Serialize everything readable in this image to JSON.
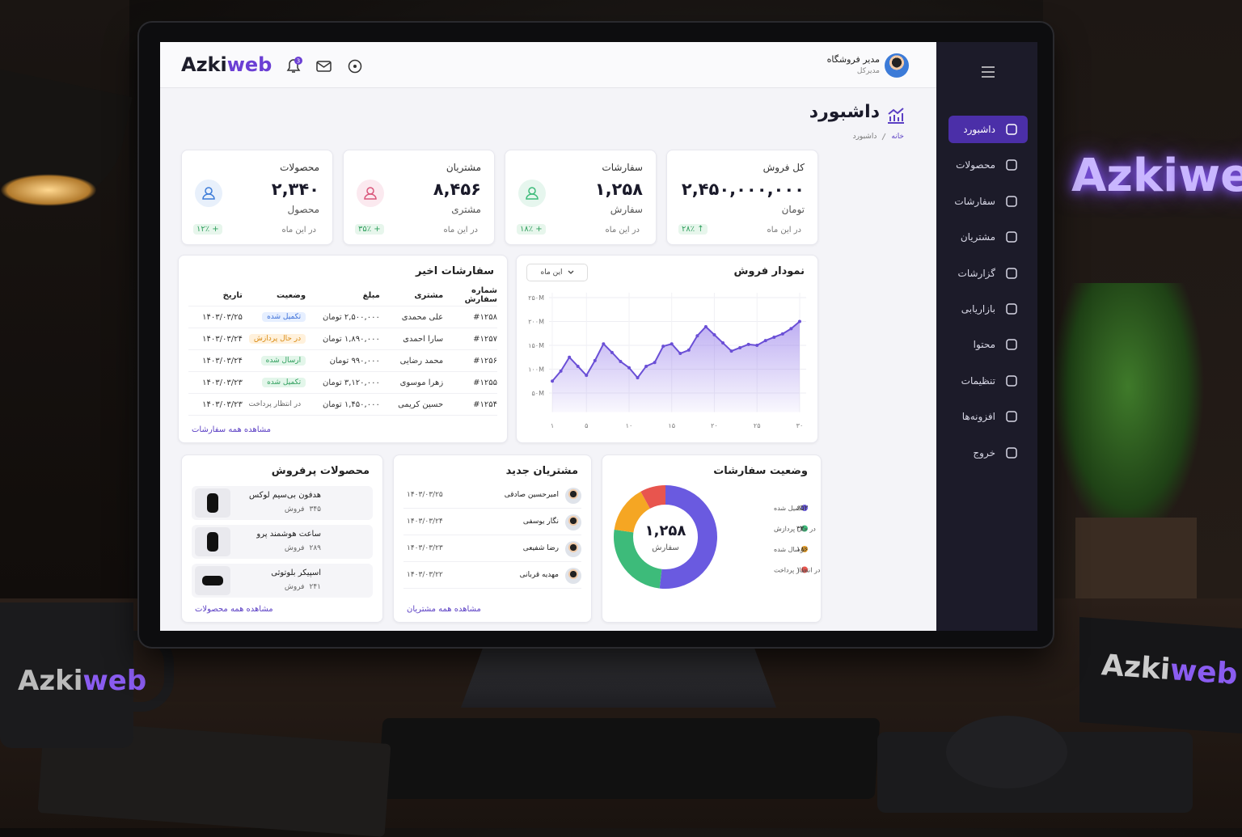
{
  "brand": {
    "parts": [
      "Azki",
      "web"
    ]
  },
  "header": {
    "notification_count": 3,
    "user_name": "مدیر فروشگاه",
    "user_role": "مدیرکل"
  },
  "sidebar": {
    "items": [
      "داشبورد",
      "محصولات",
      "سفارشات",
      "مشتریان",
      "گزارشات",
      "بازاریابی",
      "محتوا",
      "تنظیمات",
      "افزونه‌ها",
      "خروج"
    ],
    "active": 0
  },
  "page": {
    "title": "داشبورد",
    "breadcrumb": [
      "خانه",
      "داشبورد"
    ]
  },
  "kpis": [
    {
      "title": "کل فروش",
      "value": "۲,۴۵۰,۰۰۰,۰۰۰",
      "unit": "تومان",
      "period": "در این ماه",
      "change": "↑ ۲۸٪"
    },
    {
      "title": "سفارشات",
      "value": "۱,۲۵۸",
      "unit": "سفارش",
      "period": "در این ماه",
      "change": "+ ۱۸٪"
    },
    {
      "title": "مشتریان",
      "value": "۸,۴۵۶",
      "unit": "مشتری",
      "period": "در این ماه",
      "change": "+ ۳۵٪"
    },
    {
      "title": "محصولات",
      "value": "۲,۳۴۰",
      "unit": "محصول",
      "period": "در این ماه",
      "change": "+ ۱۲٪"
    }
  ],
  "recent_orders": {
    "title": "سفارشات اخیر",
    "columns": [
      "شماره سفارش",
      "مشتری",
      "مبلغ",
      "وضعیت",
      "تاریخ"
    ],
    "rows": [
      [
        "#۱۲۵۸",
        "علی محمدی",
        "۲,۵۰۰,۰۰۰ تومان",
        "تکمیل شده",
        "۱۴۰۳/۰۳/۲۵"
      ],
      [
        "#۱۲۵۷",
        "سارا احمدی",
        "۱,۸۹۰,۰۰۰ تومان",
        "در حال پردازش",
        "۱۴۰۳/۰۳/۲۴"
      ],
      [
        "#۱۲۵۶",
        "محمد رضایی",
        "۹۹۰,۰۰۰ تومان",
        "ارسال شده",
        "۱۴۰۳/۰۳/۲۴"
      ],
      [
        "#۱۲۵۵",
        "زهرا موسوی",
        "۳,۱۲۰,۰۰۰ تومان",
        "تکمیل شده",
        "۱۴۰۳/۰۳/۲۳"
      ],
      [
        "#۱۲۵۴",
        "حسین کریمی",
        "۱,۴۵۰,۰۰۰ تومان",
        "در انتظار پرداخت",
        "۱۴۰۳/۰۳/۲۳"
      ]
    ],
    "link": "مشاهده همه سفارشات"
  },
  "sales_chart": {
    "type": "line",
    "title": "نمودار فروش",
    "filter": "این ماه",
    "x": [
      1,
      2,
      3,
      4,
      5,
      6,
      7,
      8,
      9,
      10,
      11,
      12,
      13,
      14,
      15,
      16,
      17,
      18,
      19,
      20,
      21,
      22,
      23,
      24,
      25,
      26,
      27,
      28,
      29,
      30
    ],
    "values": [
      75,
      96,
      125,
      106,
      87,
      118,
      153,
      135,
      116,
      103,
      82,
      106,
      114,
      148,
      153,
      133,
      140,
      170,
      189,
      172,
      155,
      138,
      145,
      152,
      150,
      160,
      167,
      174,
      185,
      200
    ],
    "color": "#6a4fd6",
    "xlim": [
      0,
      31
    ],
    "ylim": [
      10,
      260
    ],
    "xticks": [
      {
        "value": 1,
        "label": "۱"
      },
      {
        "value": 5,
        "label": "۵"
      },
      {
        "value": 10,
        "label": "۱۰"
      },
      {
        "value": 15,
        "label": "۱۵"
      },
      {
        "value": 20,
        "label": "۲۰"
      },
      {
        "value": 25,
        "label": "۲۵"
      },
      {
        "value": 30,
        "label": "۳۰"
      }
    ],
    "yticks": [
      {
        "value": 250,
        "label": "۲۵۰M"
      },
      {
        "value": 200,
        "label": "۲۰۰M"
      },
      {
        "value": 150,
        "label": "۱۵۰M"
      },
      {
        "value": 100,
        "label": "۱۰۰M"
      },
      {
        "value": 50,
        "label": "۵۰M"
      }
    ],
    "grid": true
  },
  "order_status": {
    "type": "pie",
    "title": "وضعیت سفارشات",
    "total_label": "۱,۲۵۸",
    "total_unit": "سفارش",
    "categories": [
      "تکمیل شده",
      "در حال پردازش",
      "ارسال شده",
      "در انتظار پرداخت"
    ],
    "values": [
      652,
      320,
      186,
      100
    ],
    "value_labels": [
      "۶۵۲",
      "۳۲۰",
      "۱۸۶",
      "۱۰۰"
    ],
    "colors": [
      "#6a5ae0",
      "#3dbb7a",
      "#f5a623",
      "#e8554e"
    ]
  },
  "top_products": {
    "title": "محصولات پرفروش",
    "sales_unit": "فروش",
    "rows": [
      {
        "name": "هدفون بی‌سیم لوکس",
        "sales": "۳۴۵"
      },
      {
        "name": "ساعت هوشمند پرو",
        "sales": "۲۸۹"
      },
      {
        "name": "اسپیکر بلوتوثی",
        "sales": "۲۴۱"
      }
    ],
    "link": "مشاهده همه محصولات"
  },
  "new_customers": {
    "title": "مشتریان جدید",
    "rows": [
      {
        "name": "امیرحسین صادقی",
        "date": "۱۴۰۳/۰۳/۲۵"
      },
      {
        "name": "نگار یوسفی",
        "date": "۱۴۰۳/۰۳/۲۴"
      },
      {
        "name": "رضا شفیعی",
        "date": "۱۴۰۳/۰۳/۲۳"
      },
      {
        "name": "مهدیه قربانی",
        "date": "۱۴۰۳/۰۳/۲۲"
      }
    ],
    "link": "مشاهده همه مشتریان"
  }
}
